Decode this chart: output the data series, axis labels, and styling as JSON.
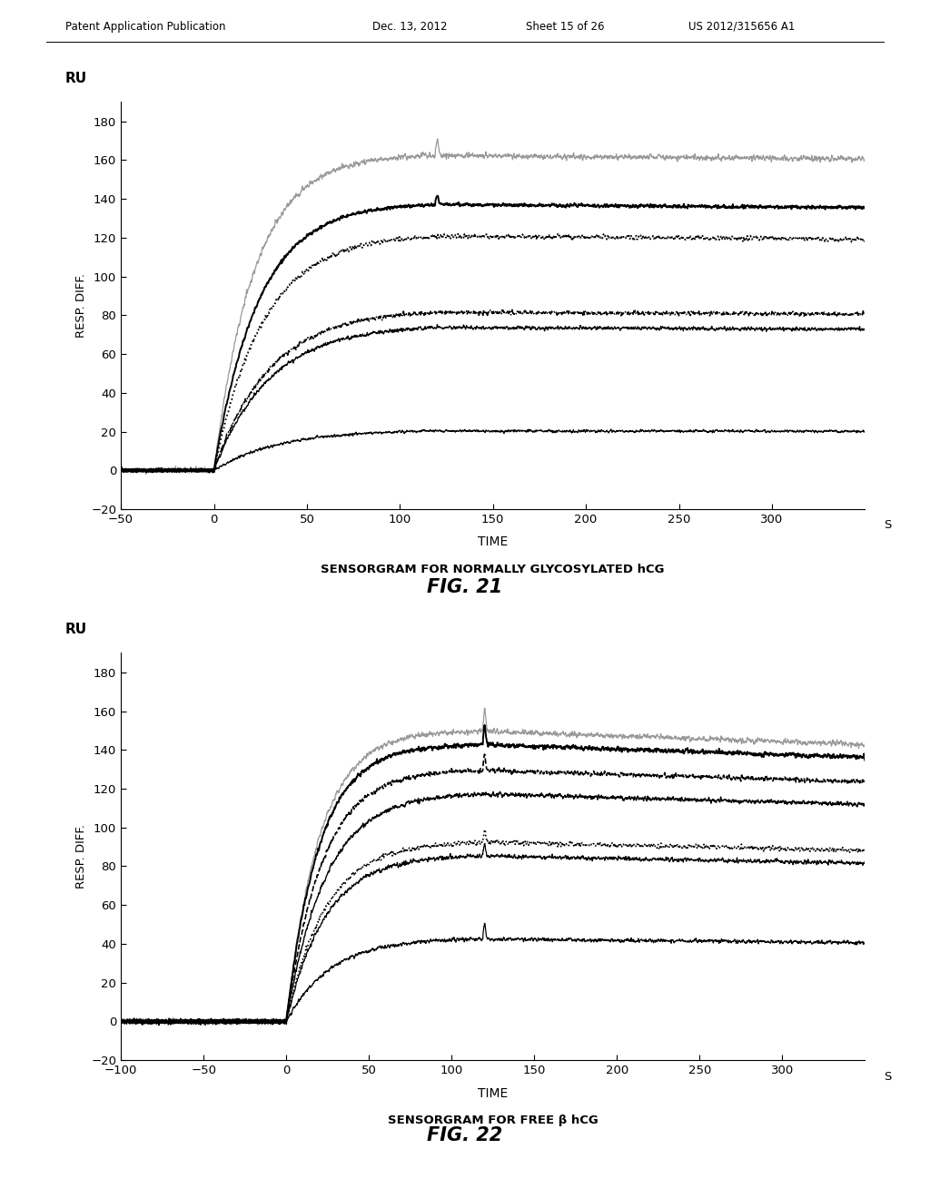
{
  "fig21": {
    "title": "SENSORGRAM FOR NORMALLY GLYCOSYLATED hCG",
    "xlabel": "TIME",
    "xlabel_suffix": "S",
    "ylabel": "RESP. DIFF.",
    "ylabel_unit": "RU",
    "xlim": [
      -50,
      350
    ],
    "ylim": [
      -20,
      190
    ],
    "xticks": [
      -50,
      0,
      50,
      100,
      150,
      200,
      250,
      300
    ],
    "yticks": [
      -20,
      0,
      20,
      40,
      60,
      80,
      100,
      120,
      140,
      160,
      180
    ],
    "association_start": 0,
    "association_end": 120,
    "curves": [
      {
        "plateau": 163,
        "color": "#999999",
        "style": "solid",
        "lw": 0.9,
        "k_assoc": 5.5,
        "k_off": 5e-05,
        "noise": 2.5,
        "spike": true,
        "spike_amp": 8
      },
      {
        "plateau": 138,
        "color": "#000000",
        "style": "solid",
        "lw": 1.4,
        "k_assoc": 5.0,
        "k_off": 5e-05,
        "noise": 1.5,
        "spike": true,
        "spike_amp": 5
      },
      {
        "plateau": 122,
        "color": "#000000",
        "style": "dotted",
        "lw": 1.3,
        "k_assoc": 4.5,
        "k_off": 5e-05,
        "noise": 2.0,
        "spike": false,
        "spike_amp": 0
      },
      {
        "plateau": 83,
        "color": "#000000",
        "style": "dashdot",
        "lw": 1.1,
        "k_assoc": 4.0,
        "k_off": 5e-05,
        "noise": 1.8,
        "spike": false,
        "spike_amp": 0
      },
      {
        "plateau": 75,
        "color": "#000000",
        "style": "solid",
        "lw": 0.9,
        "k_assoc": 4.0,
        "k_off": 5e-05,
        "noise": 1.8,
        "spike": false,
        "spike_amp": 0
      },
      {
        "plateau": 21,
        "color": "#000000",
        "style": "solid",
        "lw": 0.9,
        "k_assoc": 3.5,
        "k_off": 5e-05,
        "noise": 1.2,
        "spike": false,
        "spike_amp": 0
      }
    ]
  },
  "fig22": {
    "title": "SENSORGRAM FOR FREE β hCG",
    "xlabel": "TIME",
    "xlabel_suffix": "S",
    "ylabel": "RESP. DIFF.",
    "ylabel_unit": "RU",
    "xlim": [
      -100,
      350
    ],
    "ylim": [
      -20,
      190
    ],
    "xticks": [
      -100,
      -50,
      0,
      50,
      100,
      150,
      200,
      250,
      300
    ],
    "yticks": [
      -20,
      0,
      20,
      40,
      60,
      80,
      100,
      120,
      140,
      160,
      180
    ],
    "association_start": 0,
    "association_end": 120,
    "curves": [
      {
        "plateau": 150,
        "color": "#999999",
        "style": "solid",
        "lw": 0.9,
        "k_assoc": 6.0,
        "k_off": 0.0002,
        "noise": 2.5,
        "spike": true,
        "spike_amp": 12
      },
      {
        "plateau": 143,
        "color": "#000000",
        "style": "solid",
        "lw": 1.4,
        "k_assoc": 6.0,
        "k_off": 0.0002,
        "noise": 2.0,
        "spike": true,
        "spike_amp": 10
      },
      {
        "plateau": 130,
        "color": "#000000",
        "style": "dashed",
        "lw": 1.2,
        "k_assoc": 5.5,
        "k_off": 0.0002,
        "noise": 2.0,
        "spike": true,
        "spike_amp": 8
      },
      {
        "plateau": 118,
        "color": "#000000",
        "style": "solid",
        "lw": 1.0,
        "k_assoc": 5.0,
        "k_off": 0.0002,
        "noise": 2.0,
        "spike": false,
        "spike_amp": 0
      },
      {
        "plateau": 93,
        "color": "#000000",
        "style": "dotted",
        "lw": 1.2,
        "k_assoc": 5.0,
        "k_off": 0.0002,
        "noise": 2.0,
        "spike": true,
        "spike_amp": 6
      },
      {
        "plateau": 86,
        "color": "#000000",
        "style": "solid",
        "lw": 0.9,
        "k_assoc": 5.0,
        "k_off": 0.0002,
        "noise": 2.0,
        "spike": true,
        "spike_amp": 6
      },
      {
        "plateau": 43,
        "color": "#000000",
        "style": "solid",
        "lw": 0.9,
        "k_assoc": 4.5,
        "k_off": 0.0002,
        "noise": 1.8,
        "spike": true,
        "spike_amp": 8
      }
    ]
  },
  "fig21_label": "FIG. 21",
  "fig22_label": "FIG. 22",
  "background_color": "#ffffff"
}
